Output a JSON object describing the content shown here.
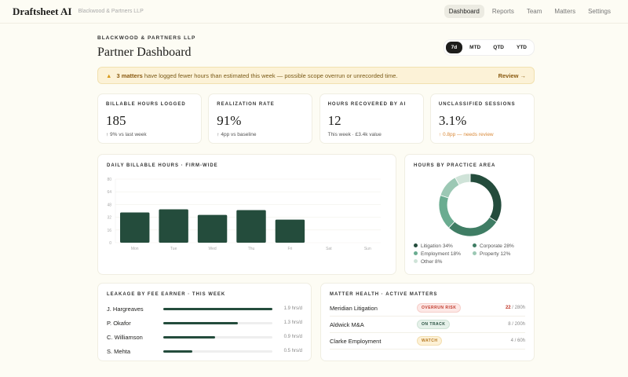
{
  "nav": {
    "brand": "Draftsheet AI",
    "firm": "Blackwood & Partners LLP",
    "links": [
      "Dashboard",
      "Reports",
      "Team",
      "Matters",
      "Settings"
    ],
    "active": "Dashboard"
  },
  "header": {
    "eyebrow": "BLACKWOOD & PARTNERS LLP",
    "title": "Partner Dashboard",
    "periods": [
      "7d",
      "MTD",
      "QTD",
      "YTD"
    ],
    "selected_period": "7d"
  },
  "alert": {
    "icon": "warning-icon",
    "count": "3 matters",
    "text": " have logged fewer hours than estimated this week — possible scope overrun or unrecorded time.",
    "action": "Review →"
  },
  "kpis": [
    {
      "label": "BILLABLE HOURS LOGGED",
      "value": "185",
      "sub": "↑ 9% vs last week"
    },
    {
      "label": "REALIZATION RATE",
      "value": "91%",
      "sub": "↑ 4pp vs baseline"
    },
    {
      "label": "HOURS RECOVERED BY AI",
      "value": "12",
      "sub": "This week · £3.4k value"
    },
    {
      "label": "UNCLASSIFIED SESSIONS",
      "value": "3.1%",
      "sub": "↑ 0.8pp — needs review"
    }
  ],
  "chart_data": [
    {
      "type": "bar",
      "title": "DAILY BILLABLE HOURS · FIRM-WIDE",
      "categories": [
        "Mon",
        "Tue",
        "Wed",
        "Thu",
        "Fri",
        "Sat",
        "Sun"
      ],
      "values": [
        38,
        42,
        35,
        41,
        29,
        0,
        0
      ],
      "ylim": [
        0,
        80
      ],
      "yticks": [
        0,
        16,
        32,
        48,
        64,
        80
      ],
      "grid": true,
      "color": "#244c3c"
    },
    {
      "type": "pie",
      "title": "HOURS BY PRACTICE AREA",
      "donut": true,
      "legend": "bottom",
      "slices": [
        {
          "name": "Litigation",
          "value": 34,
          "label": "Litigation 34%",
          "color": "#244c3c"
        },
        {
          "name": "Corporate",
          "value": 28,
          "label": "Corporate 28%",
          "color": "#3f7d64"
        },
        {
          "name": "Employment",
          "value": 18,
          "label": "Employment 18%",
          "color": "#6aac90"
        },
        {
          "name": "Property",
          "value": 12,
          "label": "Property 12%",
          "color": "#9cc8b4"
        },
        {
          "name": "Other",
          "value": 8,
          "label": "Other 8%",
          "color": "#cfe3d8"
        }
      ]
    }
  ],
  "leakage": {
    "title": "LEAKAGE BY FEE EARNER · THIS WEEK",
    "max": 1.9,
    "rows": [
      {
        "name": "J. Hargreaves",
        "value": 1.9,
        "label": "1.9 hrs/d"
      },
      {
        "name": "P. Okafor",
        "value": 1.3,
        "label": "1.3 hrs/d"
      },
      {
        "name": "C. Williamson",
        "value": 0.9,
        "label": "0.9 hrs/d"
      },
      {
        "name": "S. Mehta",
        "value": 0.5,
        "label": "0.5 hrs/d"
      }
    ]
  },
  "matters": {
    "title": "MATTER HEALTH · ACTIVE MATTERS",
    "rows": [
      {
        "name": "Meridian Litigation",
        "status": "OVERRUN RISK",
        "tone": "red",
        "hours": "22",
        "budget": " / 280h"
      },
      {
        "name": "Aldwick M&A",
        "status": "ON TRACK",
        "tone": "green",
        "hours": "8",
        "budget": " / 200h"
      },
      {
        "name": "Clarke Employment",
        "status": "WATCH",
        "tone": "yellow",
        "hours": "4",
        "budget": " / 60h"
      }
    ]
  }
}
